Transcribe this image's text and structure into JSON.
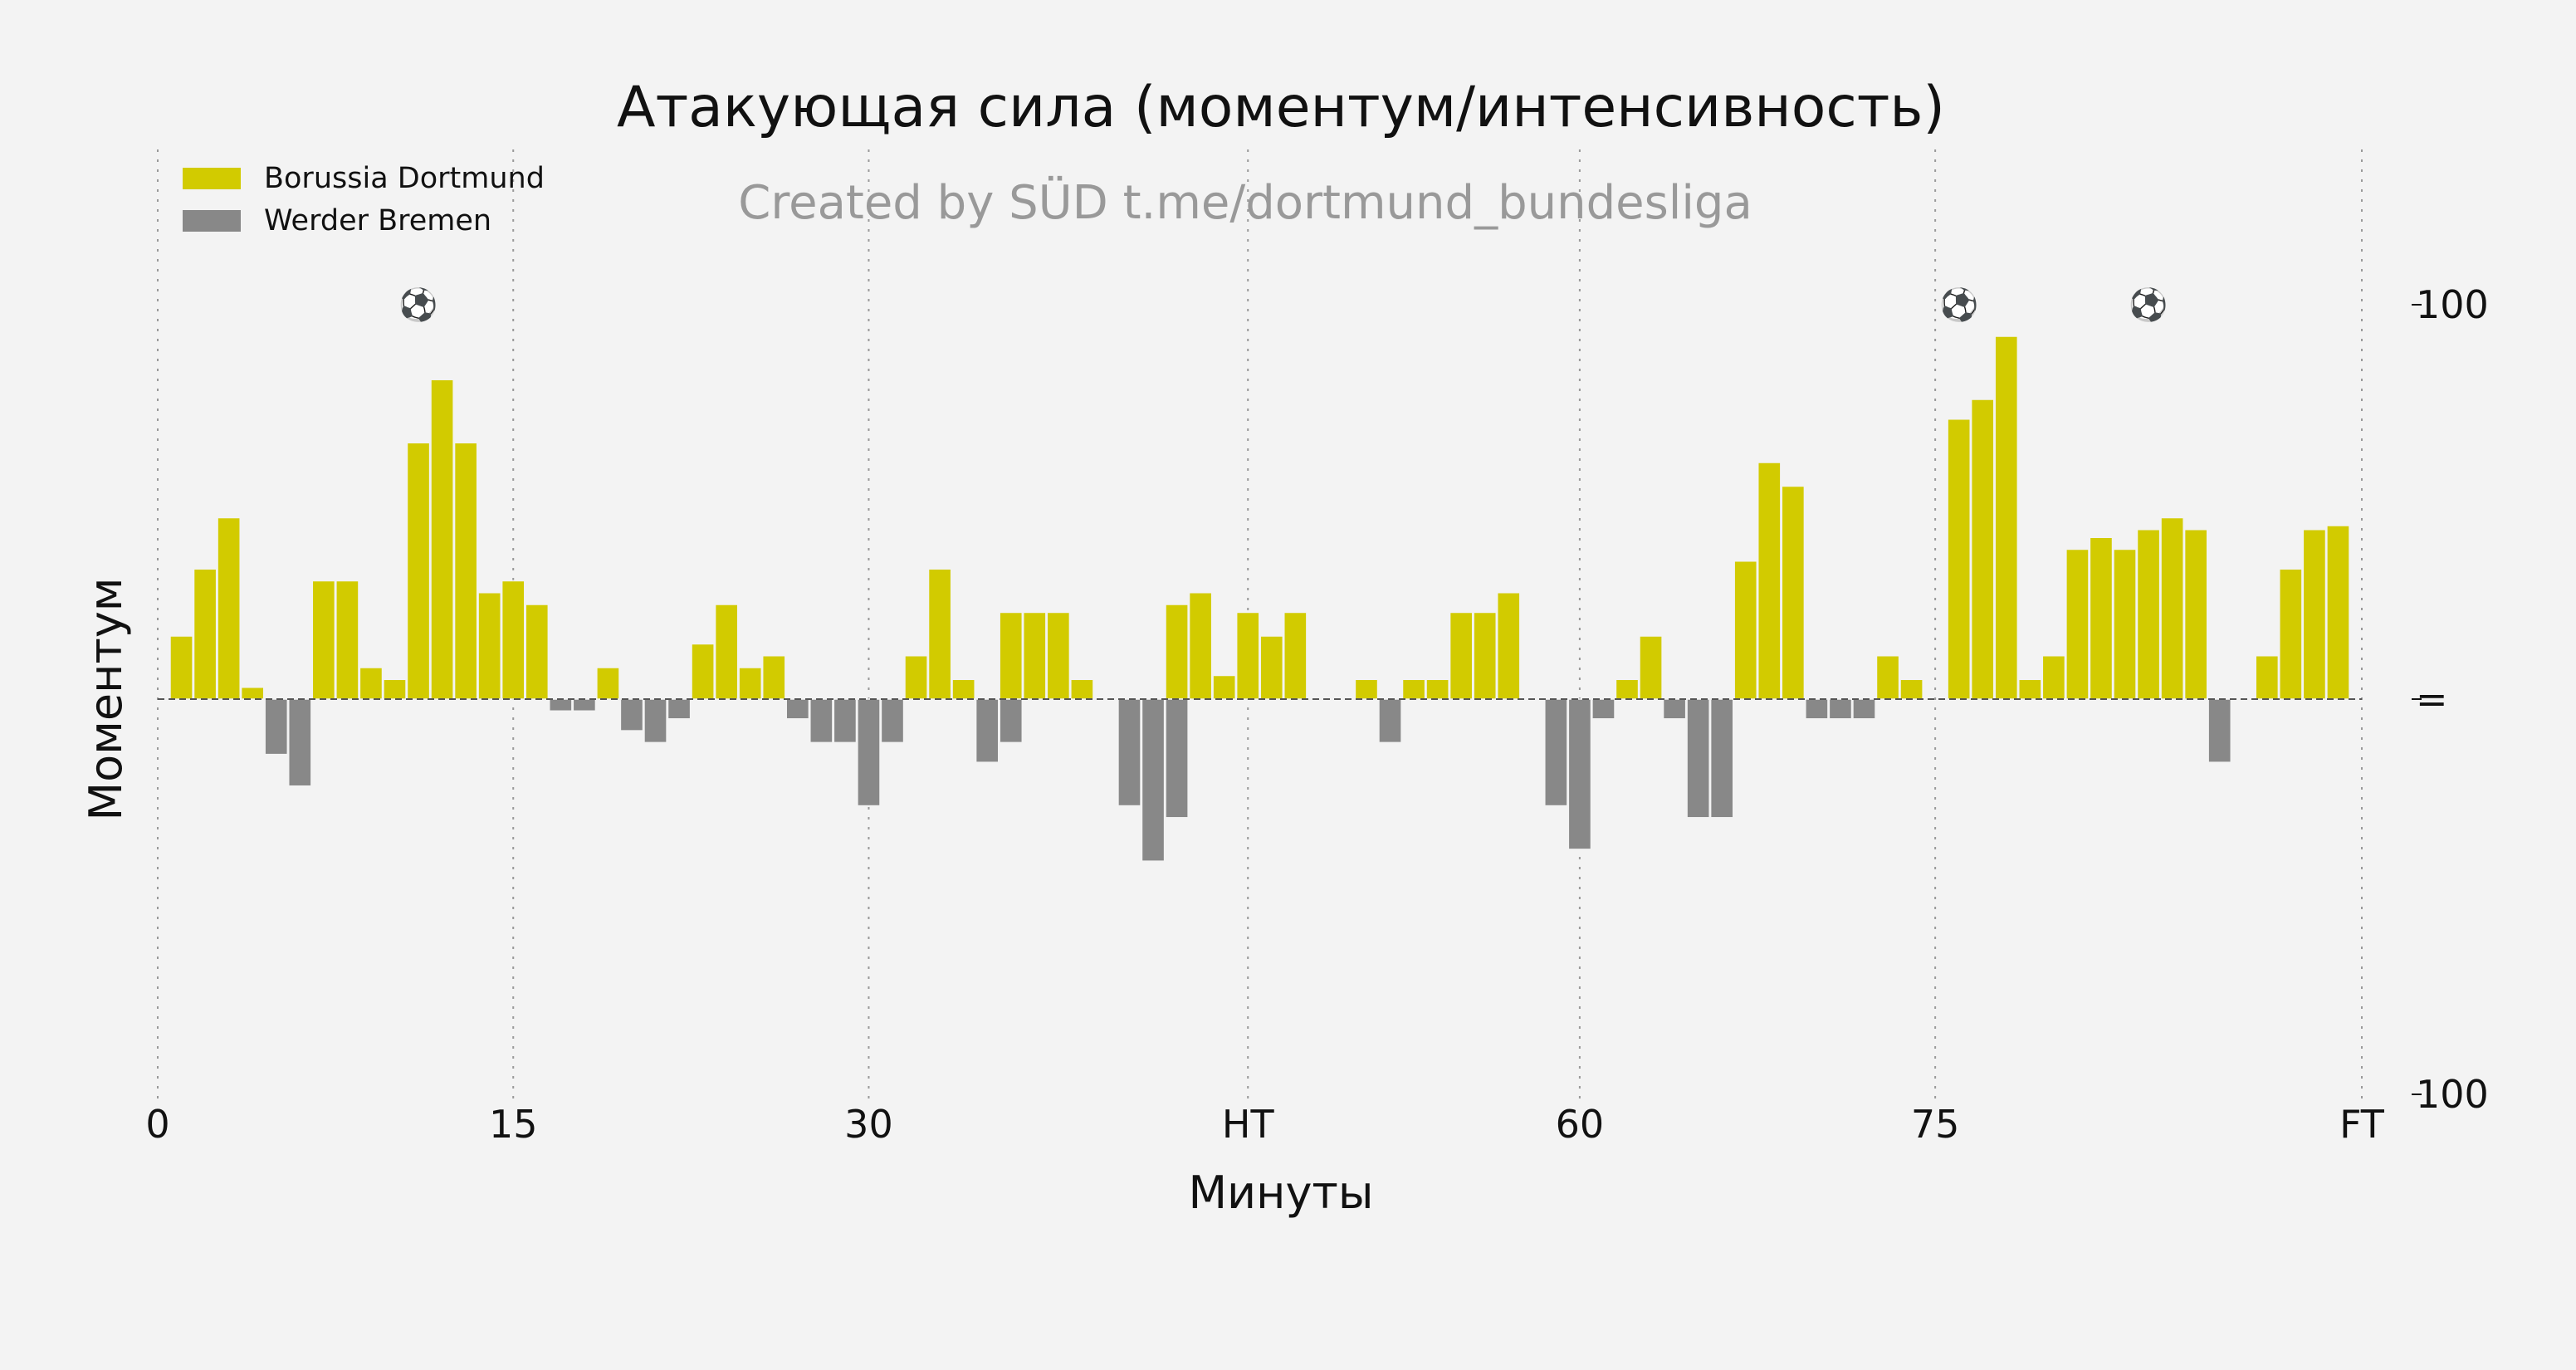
{
  "chart_data": {
    "type": "bar",
    "title": "Атакующая сила (моментум/интенсивность)",
    "subtitle": "Created by SÜD t.me/dortmund_bundesliga",
    "xlabel": "Минуты",
    "ylabel": "Моментум",
    "xlim": [
      0,
      93
    ],
    "ylim": [
      -100,
      100
    ],
    "x_ticks": [
      {
        "value": 0,
        "label": "0"
      },
      {
        "value": 15,
        "label": "15"
      },
      {
        "value": 30,
        "label": "30"
      },
      {
        "value": 46,
        "label": "HT"
      },
      {
        "value": 60,
        "label": "60"
      },
      {
        "value": 75,
        "label": "75"
      },
      {
        "value": 93,
        "label": "FT"
      }
    ],
    "y_ticks": [
      {
        "value": 100,
        "label": "100"
      },
      {
        "value": 0,
        "label": "="
      },
      {
        "value": -100,
        "label": "100"
      }
    ],
    "vertical_gridlines": [
      0,
      15,
      30,
      46,
      60,
      75,
      93
    ],
    "legend_position": "top-left",
    "series": [
      {
        "name": "Borussia Dortmund",
        "color": "#d2cb00",
        "values": [
          [
            1,
            16
          ],
          [
            2,
            33
          ],
          [
            3,
            46
          ],
          [
            4,
            3
          ],
          [
            7,
            30
          ],
          [
            8,
            30
          ],
          [
            9,
            8
          ],
          [
            10,
            5
          ],
          [
            11,
            65
          ],
          [
            12,
            81
          ],
          [
            13,
            65
          ],
          [
            14,
            27
          ],
          [
            15,
            30
          ],
          [
            16,
            24
          ],
          [
            19,
            8
          ],
          [
            23,
            14
          ],
          [
            24,
            24
          ],
          [
            25,
            8
          ],
          [
            26,
            11
          ],
          [
            32,
            11
          ],
          [
            33,
            33
          ],
          [
            34,
            5
          ],
          [
            36,
            22
          ],
          [
            37,
            22
          ],
          [
            38,
            22
          ],
          [
            39,
            5
          ],
          [
            43,
            24
          ],
          [
            44,
            27
          ],
          [
            45,
            6
          ],
          [
            46,
            22
          ],
          [
            47,
            16
          ],
          [
            48,
            22
          ],
          [
            51,
            5
          ],
          [
            53,
            5
          ],
          [
            54,
            5
          ],
          [
            55,
            22
          ],
          [
            56,
            22
          ],
          [
            57,
            27
          ],
          [
            62,
            5
          ],
          [
            63,
            16
          ],
          [
            67,
            35
          ],
          [
            68,
            60
          ],
          [
            69,
            54
          ],
          [
            73,
            11
          ],
          [
            74,
            5
          ],
          [
            76,
            71
          ],
          [
            77,
            76
          ],
          [
            78,
            92
          ],
          [
            79,
            5
          ],
          [
            80,
            11
          ],
          [
            81,
            38
          ],
          [
            82,
            41
          ],
          [
            83,
            38
          ],
          [
            84,
            43
          ],
          [
            85,
            46
          ],
          [
            86,
            43
          ],
          [
            89,
            11
          ],
          [
            90,
            33
          ],
          [
            91,
            43
          ],
          [
            92,
            44
          ]
        ]
      },
      {
        "name": "Werder Bremen",
        "color": "#888888",
        "values": [
          [
            5,
            -14
          ],
          [
            6,
            -22
          ],
          [
            17,
            -3
          ],
          [
            18,
            -3
          ],
          [
            20,
            -8
          ],
          [
            21,
            -11
          ],
          [
            22,
            -5
          ],
          [
            27,
            -5
          ],
          [
            28,
            -11
          ],
          [
            29,
            -11
          ],
          [
            30,
            -27
          ],
          [
            31,
            -11
          ],
          [
            35,
            -16
          ],
          [
            36,
            -11
          ],
          [
            41,
            -27
          ],
          [
            42,
            -41
          ],
          [
            43,
            -30
          ],
          [
            52,
            -11
          ],
          [
            59,
            -27
          ],
          [
            60,
            -38
          ],
          [
            61,
            -5
          ],
          [
            64,
            -5
          ],
          [
            65,
            -30
          ],
          [
            66,
            -30
          ],
          [
            70,
            -5
          ],
          [
            71,
            -5
          ],
          [
            72,
            -5
          ],
          [
            87,
            -16
          ]
        ]
      }
    ],
    "goal_markers": {
      "symbol": "⚽",
      "value": 100,
      "minutes": [
        11,
        76,
        84
      ]
    }
  }
}
